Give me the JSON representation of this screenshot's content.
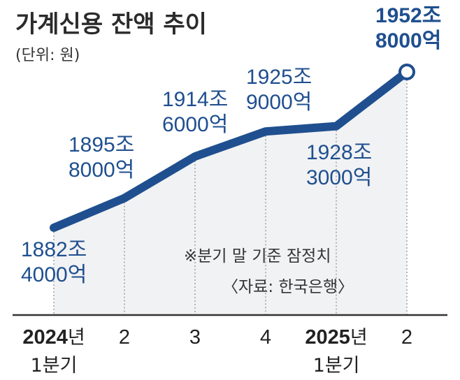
{
  "chart_data": {
    "type": "line",
    "title": "가계신용 잔액 추이",
    "unit": "(단위: 원)",
    "x": [
      "2024년 1분기",
      "2",
      "3",
      "4",
      "2025년 1분기",
      "2"
    ],
    "series": [
      {
        "values": [
          18824000,
          18958000,
          19146000,
          19259000,
          19283000,
          19528000
        ],
        "labels": [
          [
            "1882조",
            "4000억"
          ],
          [
            "1895조",
            "8000억"
          ],
          [
            "1914조",
            "6000억"
          ],
          [
            "1925조",
            "9000억"
          ],
          [
            "1928조",
            "3000억"
          ],
          [
            "1952조",
            "8000억"
          ]
        ]
      }
    ],
    "value_unit": "억 원",
    "ticks": [
      {
        "main": "2024",
        "suffix": "년",
        "sub": "1분기"
      },
      {
        "main": "2",
        "suffix": "",
        "sub": ""
      },
      {
        "main": "3",
        "suffix": "",
        "sub": ""
      },
      {
        "main": "4",
        "suffix": "",
        "sub": ""
      },
      {
        "main": "2025",
        "suffix": "년",
        "sub": "1분기"
      },
      {
        "main": "2",
        "suffix": "",
        "sub": ""
      }
    ],
    "notes": [
      "※분기 말 기준 잠정치",
      "〈자료: 한국은행〉"
    ],
    "grid": false,
    "colors": {
      "line": "#1f4f8f",
      "area": "#f1f2f4",
      "text_value": "#1f4f8f",
      "text_dark": "#2b2b2b",
      "axis": "#333333",
      "guide": "#9a9a9a"
    }
  }
}
